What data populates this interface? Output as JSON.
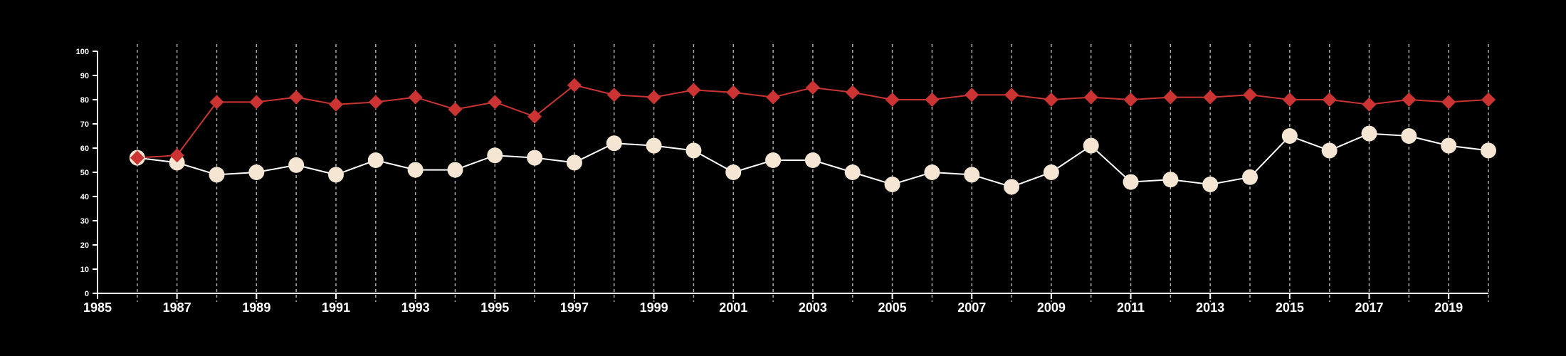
{
  "chart_data": {
    "type": "line",
    "title": "",
    "xlabel": "",
    "ylabel": "",
    "xlim": [
      1985,
      2020
    ],
    "ylim": [
      0,
      100
    ],
    "x_ticks": [
      1985,
      1987,
      1989,
      1991,
      1993,
      1995,
      1997,
      1999,
      2001,
      2003,
      2005,
      2007,
      2009,
      2011,
      2013,
      2015,
      2017,
      2019
    ],
    "y_ticks": [
      0,
      10,
      20,
      30,
      40,
      50,
      60,
      70,
      80,
      90,
      100
    ],
    "grid": "vertical dashed at each year",
    "legend": "none",
    "x": [
      1986,
      1987,
      1988,
      1989,
      1990,
      1991,
      1992,
      1993,
      1994,
      1995,
      1996,
      1997,
      1998,
      1999,
      2000,
      2001,
      2002,
      2003,
      2004,
      2005,
      2006,
      2007,
      2008,
      2009,
      2010,
      2011,
      2012,
      2013,
      2014,
      2015,
      2016,
      2017,
      2018,
      2019,
      2020
    ],
    "series": [
      {
        "color": "#cc3333",
        "marker": "diamond",
        "values": [
          56,
          57,
          79,
          79,
          81,
          78,
          79,
          81,
          76,
          79,
          73,
          86,
          82,
          81,
          84,
          83,
          81,
          85,
          83,
          80,
          80,
          82,
          82,
          80,
          81,
          80,
          81,
          81,
          82,
          80,
          80,
          78,
          80,
          79,
          80
        ]
      },
      {
        "color": "#f5e6d3",
        "line_color": "#ffffff",
        "marker": "circle",
        "values": [
          56,
          54,
          49,
          50,
          53,
          49,
          55,
          51,
          51,
          57,
          56,
          54,
          62,
          61,
          59,
          50,
          55,
          55,
          50,
          45,
          50,
          49,
          44,
          50,
          61,
          46,
          47,
          45,
          48,
          65,
          59,
          66,
          65,
          61,
          59
        ]
      }
    ]
  }
}
